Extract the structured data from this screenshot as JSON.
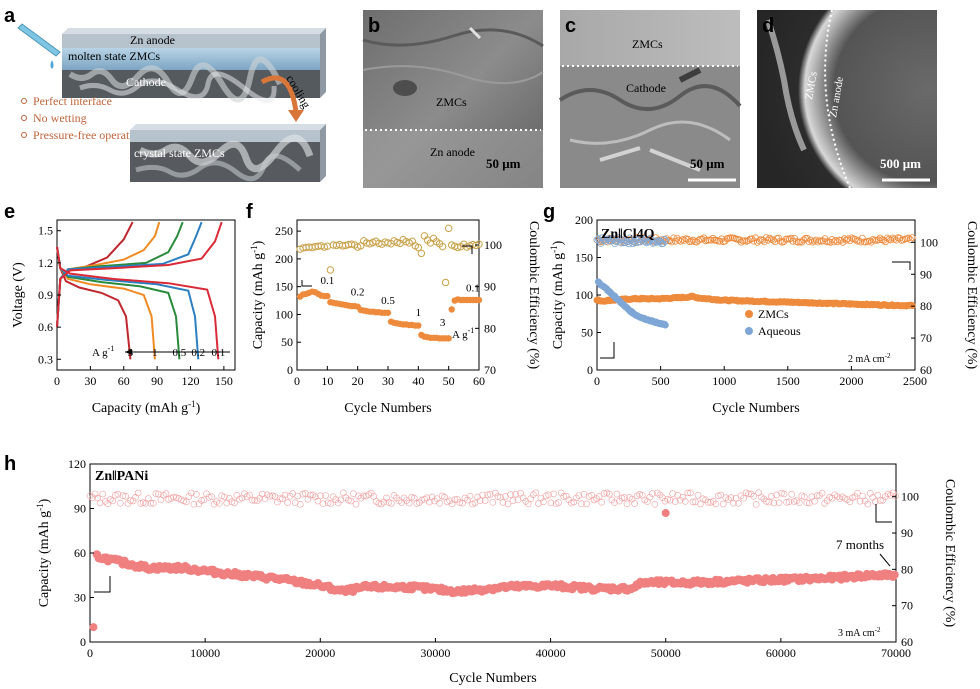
{
  "panel_labels": [
    "a",
    "b",
    "c",
    "d",
    "e",
    "f",
    "g",
    "h"
  ],
  "schematic": {
    "top_stack": {
      "anode": "Zn anode",
      "middle": "molten state ZMCs",
      "bottom": "Cathode"
    },
    "arrow_label": "cooling",
    "features": [
      "Perfect interface",
      "No wetting",
      "Pressure-free operation"
    ],
    "bottom_stack_label": "crystal state ZMCs"
  },
  "micrographs": {
    "b": {
      "labels": [
        "ZMCs",
        "Zn anode"
      ],
      "scale": "50 μm"
    },
    "c": {
      "labels": [
        "ZMCs",
        "Cathode"
      ],
      "scale": "50 μm"
    },
    "d": {
      "labels": [
        "ZMCs",
        "Zn anode"
      ],
      "scale": "500 μm"
    }
  },
  "colors": {
    "orange": "#ee8a3c",
    "blue": "#7ea7d6",
    "salmon": "#f08080",
    "rate_colors": [
      "#c0262d",
      "#ef8b22",
      "#2a8a3c",
      "#2b7fc1",
      "#da2a37"
    ]
  },
  "chart_data": [
    {
      "id": "e",
      "type": "line",
      "xlabel": "Capacity (mAh g-1)",
      "ylabel": "Voltage (V)",
      "xlim": [
        0,
        160
      ],
      "ylim": [
        0.2,
        1.6
      ],
      "xticks": [
        "0",
        "30",
        "60",
        "90",
        "120",
        "150"
      ],
      "yticks": [
        "0.3",
        "0.6",
        "0.9",
        "1.2",
        "1.5"
      ],
      "rate_unit": "A g",
      "rate_unit_exp": "-1",
      "series": [
        {
          "name": "3",
          "discharge": [
            [
              0,
              1.35
            ],
            [
              3,
              1.15
            ],
            [
              8,
              1.03
            ],
            [
              20,
              0.97
            ],
            [
              40,
              0.92
            ],
            [
              55,
              0.85
            ],
            [
              62,
              0.7
            ],
            [
              66,
              0.3
            ]
          ],
          "charge": [
            [
              0,
              0.6
            ],
            [
              3,
              1.05
            ],
            [
              8,
              1.12
            ],
            [
              25,
              1.16
            ],
            [
              45,
              1.25
            ],
            [
              60,
              1.42
            ],
            [
              68,
              1.58
            ]
          ]
        },
        {
          "name": "1",
          "discharge": [
            [
              0,
              1.35
            ],
            [
              3,
              1.15
            ],
            [
              10,
              1.05
            ],
            [
              30,
              1.0
            ],
            [
              60,
              0.96
            ],
            [
              78,
              0.9
            ],
            [
              85,
              0.7
            ],
            [
              88,
              0.3
            ]
          ],
          "charge": [
            [
              0,
              0.6
            ],
            [
              3,
              1.05
            ],
            [
              10,
              1.14
            ],
            [
              35,
              1.18
            ],
            [
              60,
              1.23
            ],
            [
              78,
              1.32
            ],
            [
              88,
              1.45
            ],
            [
              92,
              1.58
            ]
          ]
        },
        {
          "name": "0.5",
          "discharge": [
            [
              0,
              1.35
            ],
            [
              3,
              1.15
            ],
            [
              10,
              1.07
            ],
            [
              40,
              1.02
            ],
            [
              75,
              0.98
            ],
            [
              100,
              0.92
            ],
            [
              107,
              0.7
            ],
            [
              110,
              0.3
            ]
          ],
          "charge": [
            [
              0,
              0.6
            ],
            [
              3,
              1.05
            ],
            [
              10,
              1.14
            ],
            [
              40,
              1.17
            ],
            [
              80,
              1.2
            ],
            [
              100,
              1.3
            ],
            [
              108,
              1.45
            ],
            [
              113,
              1.58
            ]
          ]
        },
        {
          "name": "0.2",
          "discharge": [
            [
              0,
              1.35
            ],
            [
              3,
              1.15
            ],
            [
              10,
              1.08
            ],
            [
              45,
              1.04
            ],
            [
              90,
              1.0
            ],
            [
              118,
              0.94
            ],
            [
              124,
              0.7
            ],
            [
              127,
              0.3
            ]
          ],
          "charge": [
            [
              0,
              0.6
            ],
            [
              3,
              1.05
            ],
            [
              10,
              1.14
            ],
            [
              45,
              1.16
            ],
            [
              95,
              1.19
            ],
            [
              118,
              1.28
            ],
            [
              125,
              1.45
            ],
            [
              130,
              1.58
            ]
          ]
        },
        {
          "name": "0.1",
          "discharge": [
            [
              0,
              1.35
            ],
            [
              3,
              1.15
            ],
            [
              12,
              1.1
            ],
            [
              50,
              1.05
            ],
            [
              100,
              1.01
            ],
            [
              135,
              0.95
            ],
            [
              142,
              0.7
            ],
            [
              145,
              0.3
            ]
          ],
          "charge": [
            [
              0,
              0.6
            ],
            [
              3,
              1.05
            ],
            [
              12,
              1.13
            ],
            [
              50,
              1.15
            ],
            [
              100,
              1.18
            ],
            [
              130,
              1.24
            ],
            [
              142,
              1.4
            ],
            [
              148,
              1.58
            ]
          ]
        }
      ]
    },
    {
      "id": "f",
      "type": "scatter",
      "xlabel": "Cycle Numbers",
      "ylabel": "Capacity (mAh g-1)",
      "ylabel_right": "Coulombic Efficiency (%)",
      "xlim": [
        0,
        60
      ],
      "ylim": [
        0,
        270
      ],
      "ylim_right": [
        70,
        106
      ],
      "xticks": [
        "0",
        "10",
        "20",
        "30",
        "40",
        "50",
        "60"
      ],
      "yticks": [
        "0",
        "50",
        "100",
        "150",
        "200",
        "250"
      ],
      "yticks_right": [
        "70",
        "80",
        "90",
        "100"
      ],
      "rate_labels": [
        "0.1",
        "0.2",
        "0.5",
        "1",
        "3",
        "0.1"
      ],
      "rate_unit": "A g",
      "rate_unit_exp": "-1",
      "capacity": [
        [
          1,
          132
        ],
        [
          2,
          136
        ],
        [
          3,
          137
        ],
        [
          4,
          139
        ],
        [
          5,
          141
        ],
        [
          6,
          140
        ],
        [
          7,
          137
        ],
        [
          8,
          134
        ],
        [
          9,
          133
        ],
        [
          10,
          133
        ],
        [
          11,
          122
        ],
        [
          12,
          121
        ],
        [
          13,
          120
        ],
        [
          14,
          119
        ],
        [
          15,
          118
        ],
        [
          16,
          117
        ],
        [
          17,
          116
        ],
        [
          18,
          115
        ],
        [
          19,
          115
        ],
        [
          20,
          114
        ],
        [
          21,
          108
        ],
        [
          22,
          107
        ],
        [
          23,
          106
        ],
        [
          24,
          105
        ],
        [
          25,
          105
        ],
        [
          26,
          104
        ],
        [
          27,
          104
        ],
        [
          28,
          103
        ],
        [
          29,
          103
        ],
        [
          30,
          103
        ],
        [
          31,
          87
        ],
        [
          32,
          85
        ],
        [
          33,
          84
        ],
        [
          34,
          83
        ],
        [
          35,
          82
        ],
        [
          36,
          82
        ],
        [
          37,
          81
        ],
        [
          38,
          81
        ],
        [
          39,
          80
        ],
        [
          40,
          80
        ],
        [
          41,
          63
        ],
        [
          42,
          60
        ],
        [
          43,
          59
        ],
        [
          44,
          58
        ],
        [
          45,
          58
        ],
        [
          46,
          58
        ],
        [
          47,
          57
        ],
        [
          48,
          57
        ],
        [
          49,
          57
        ],
        [
          50,
          57
        ],
        [
          51,
          109
        ],
        [
          52,
          125
        ],
        [
          53,
          127
        ],
        [
          54,
          126
        ],
        [
          55,
          126
        ],
        [
          56,
          126
        ],
        [
          57,
          126
        ],
        [
          58,
          126
        ],
        [
          59,
          126
        ],
        [
          60,
          126
        ]
      ],
      "efficiency": [
        [
          1,
          99
        ],
        [
          2,
          99.3
        ],
        [
          3,
          99.4
        ],
        [
          4,
          99.5
        ],
        [
          5,
          99.4
        ],
        [
          6,
          99.6
        ],
        [
          7,
          99.7
        ],
        [
          8,
          99.8
        ],
        [
          9,
          99.5
        ],
        [
          10,
          99.7
        ],
        [
          11,
          94
        ],
        [
          12,
          100
        ],
        [
          13,
          99.9
        ],
        [
          14,
          100.1
        ],
        [
          15,
          99.8
        ],
        [
          16,
          99.9
        ],
        [
          17,
          100.1
        ],
        [
          18,
          100.2
        ],
        [
          19,
          100
        ],
        [
          20,
          99.5
        ],
        [
          21,
          99.8
        ],
        [
          22,
          101
        ],
        [
          23,
          100.5
        ],
        [
          24,
          100.3
        ],
        [
          25,
          100.6
        ],
        [
          26,
          100.9
        ],
        [
          27,
          100.4
        ],
        [
          28,
          100.2
        ],
        [
          29,
          100.7
        ],
        [
          30,
          100.5
        ],
        [
          31,
          100.3
        ],
        [
          32,
          101
        ],
        [
          33,
          100.6
        ],
        [
          34,
          100.4
        ],
        [
          35,
          101.3
        ],
        [
          36,
          100.8
        ],
        [
          37,
          100.5
        ],
        [
          38,
          100.9
        ],
        [
          39,
          99.8
        ],
        [
          40,
          99.4
        ],
        [
          41,
          98
        ],
        [
          42,
          102.2
        ],
        [
          43,
          101.2
        ],
        [
          44,
          100.5
        ],
        [
          45,
          101.6
        ],
        [
          46,
          100.8
        ],
        [
          47,
          100.3
        ],
        [
          48,
          99.6
        ],
        [
          49,
          91
        ],
        [
          50,
          104
        ],
        [
          51,
          100
        ],
        [
          52,
          99.7
        ],
        [
          53,
          99.4
        ],
        [
          54,
          99.6
        ],
        [
          55,
          100.2
        ],
        [
          56,
          99.5
        ],
        [
          57,
          99.8
        ],
        [
          58,
          100.1
        ],
        [
          59,
          99.9
        ],
        [
          60,
          100.2
        ]
      ]
    },
    {
      "id": "g",
      "type": "scatter",
      "title": "Zn‖Cl4Q",
      "xlabel": "Cycle Numbers",
      "ylabel": "Capacity (mAh g-1)",
      "ylabel_right": "Coulombic Efficiency (%)",
      "xlim": [
        0,
        2500
      ],
      "ylim": [
        0,
        200
      ],
      "ylim_right": [
        60,
        107
      ],
      "xticks": [
        "0",
        "500",
        "1000",
        "1500",
        "2000",
        "2500"
      ],
      "yticks": [
        "0",
        "50",
        "100",
        "150",
        "200"
      ],
      "yticks_right": [
        "60",
        "70",
        "80",
        "90",
        "100"
      ],
      "current_density": "2 mA cm",
      "current_density_exp": "-2",
      "series": [
        {
          "name": "ZMCs",
          "color": "#ee8a3c",
          "capacity": [
            [
              0,
              93
            ],
            [
              50,
              92
            ],
            [
              100,
              93
            ],
            [
              200,
              94
            ],
            [
              300,
              95
            ],
            [
              400,
              95
            ],
            [
              500,
              95
            ],
            [
              600,
              96
            ],
            [
              700,
              97
            ],
            [
              750,
              98
            ],
            [
              800,
              96
            ],
            [
              1000,
              93
            ],
            [
              1200,
              92
            ],
            [
              1400,
              91
            ],
            [
              1600,
              90
            ],
            [
              1800,
              89
            ],
            [
              2000,
              88
            ],
            [
              2200,
              87
            ],
            [
              2400,
              86
            ],
            [
              2480,
              86
            ]
          ],
          "efficiency": [
            100,
            101.5
          ]
        },
        {
          "name": "Aqueous",
          "color": "#7ea7d6",
          "capacity": [
            [
              10,
              117
            ],
            [
              30,
              114
            ],
            [
              60,
              110
            ],
            [
              100,
              104
            ],
            [
              150,
              96
            ],
            [
              200,
              88
            ],
            [
              250,
              80
            ],
            [
              300,
              74
            ],
            [
              350,
              70
            ],
            [
              400,
              67
            ],
            [
              450,
              64
            ],
            [
              500,
              62
            ],
            [
              540,
              60
            ]
          ],
          "efficiency": [
            99.5,
            101.5
          ]
        }
      ]
    },
    {
      "id": "h",
      "type": "scatter",
      "title": "Zn‖PANi",
      "xlabel": "Cycle Numbers",
      "ylabel": "Capacity (mAh g-1)",
      "ylabel_right": "Coulombic Efficiency (%)",
      "xlim": [
        0,
        70000
      ],
      "ylim": [
        0,
        120
      ],
      "ylim_right": [
        60,
        109
      ],
      "xticks": [
        "0",
        "10000",
        "20000",
        "30000",
        "40000",
        "50000",
        "60000",
        "70000"
      ],
      "yticks": [
        "0",
        "30",
        "60",
        "90",
        "120"
      ],
      "yticks_right": [
        "60",
        "70",
        "80",
        "90",
        "100"
      ],
      "annotation": "7 months",
      "current_density": "3 mA cm",
      "current_density_exp": "-2",
      "capacity": [
        [
          0,
          10
        ],
        [
          500,
          58
        ],
        [
          2000,
          55
        ],
        [
          5000,
          50
        ],
        [
          8000,
          50
        ],
        [
          12000,
          46
        ],
        [
          16000,
          43
        ],
        [
          20000,
          38
        ],
        [
          22000,
          34
        ],
        [
          24000,
          37
        ],
        [
          28000,
          37
        ],
        [
          32000,
          34
        ],
        [
          36000,
          37
        ],
        [
          40000,
          38
        ],
        [
          44000,
          36
        ],
        [
          47000,
          36
        ],
        [
          48000,
          40
        ],
        [
          52000,
          40
        ],
        [
          56000,
          41
        ],
        [
          60000,
          42
        ],
        [
          64000,
          43
        ],
        [
          68000,
          45
        ],
        [
          70000,
          45
        ]
      ],
      "efficiency": [
        [
          0,
          99.5
        ],
        [
          70000,
          99.5
        ]
      ],
      "outliers": [
        [
          50000,
          95.5
        ]
      ]
    }
  ]
}
